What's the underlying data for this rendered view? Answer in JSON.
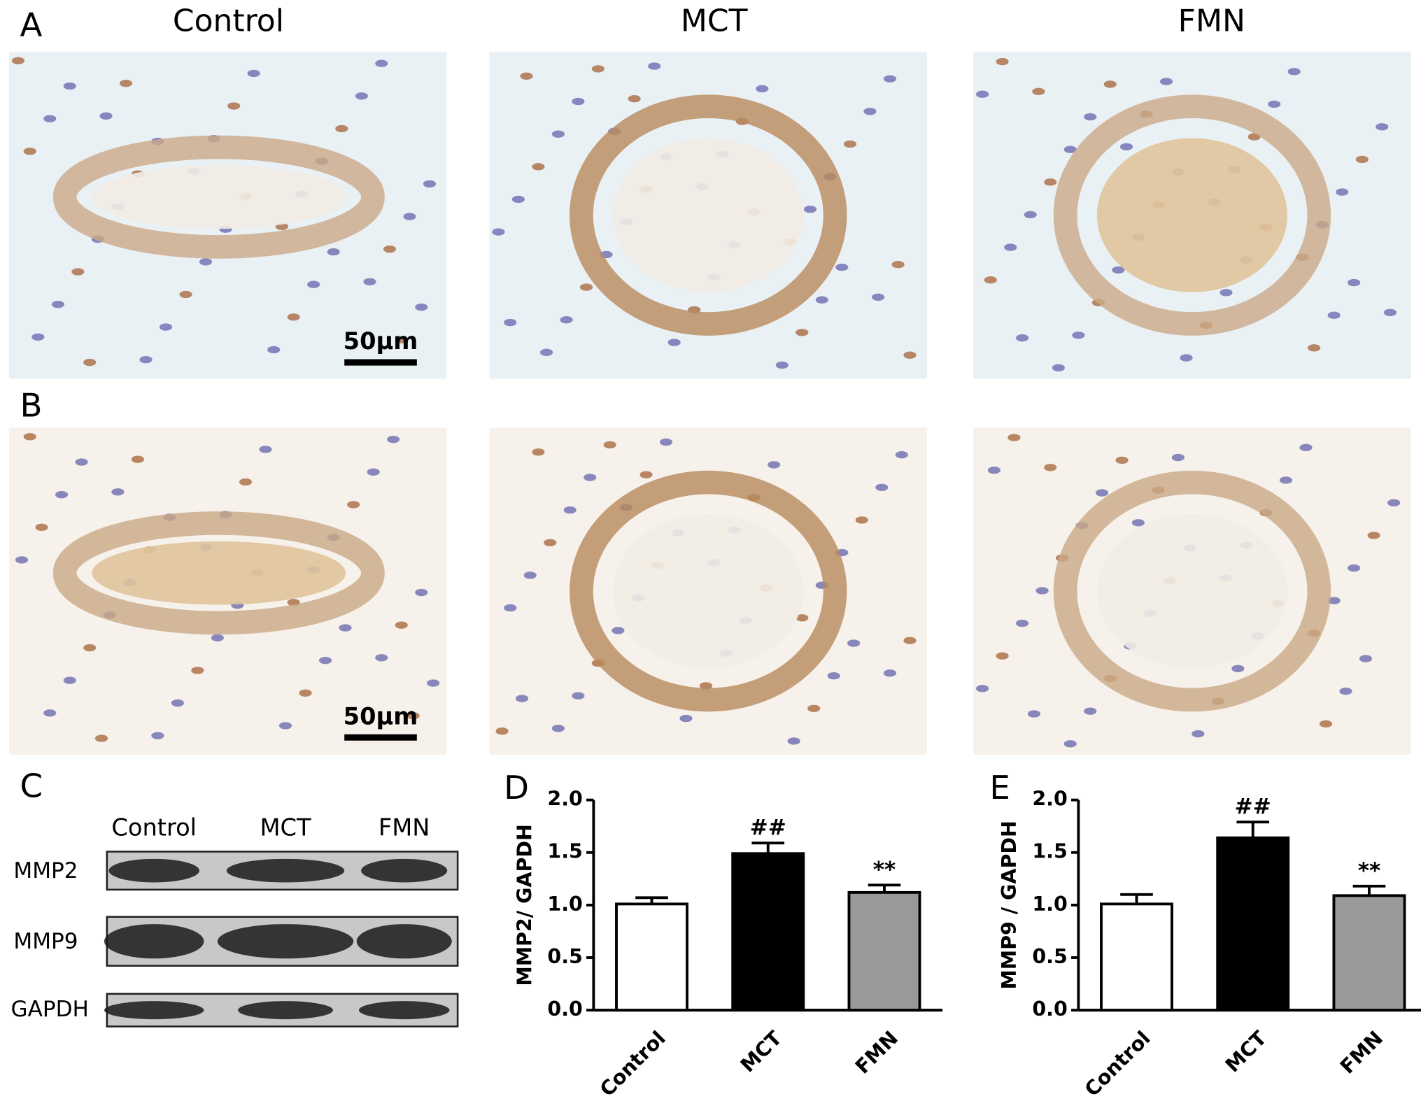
{
  "panel_labels": [
    "A",
    "B",
    "C",
    "D",
    "E"
  ],
  "columns": [
    "Control",
    "MCT",
    "FMN"
  ],
  "scale_bar": "50µm",
  "blot": {
    "lanes": [
      "Control",
      "MCT",
      "FMN"
    ],
    "rows": [
      "MMP2",
      "MMP9",
      "GAPDH"
    ]
  },
  "chart_data": [
    {
      "type": "bar",
      "ylabel": "MMP2/ GAPDH",
      "categories": [
        "Control",
        "MCT",
        "FMN"
      ],
      "values": [
        1.01,
        1.49,
        1.12
      ],
      "errors": [
        0.06,
        0.1,
        0.07
      ],
      "colors": [
        "#ffffff",
        "#000000",
        "#999999"
      ],
      "edgecolor": "#000000",
      "annotations": [
        {
          "category": "MCT",
          "text": "##"
        },
        {
          "category": "FMN",
          "text": "**"
        }
      ],
      "ylim": [
        0,
        2
      ],
      "yticks": [
        {
          "value": 0,
          "label": "0.0"
        },
        {
          "value": 0.5,
          "label": "0.5"
        },
        {
          "value": 1,
          "label": "1.0"
        },
        {
          "value": 1.5,
          "label": "1.5"
        },
        {
          "value": 2,
          "label": "2.0"
        }
      ]
    },
    {
      "type": "bar",
      "ylabel": "MMP9 / GAPDH",
      "categories": [
        "Control",
        "MCT",
        "FMN"
      ],
      "values": [
        1.01,
        1.64,
        1.09
      ],
      "errors": [
        0.09,
        0.15,
        0.09
      ],
      "colors": [
        "#ffffff",
        "#000000",
        "#999999"
      ],
      "edgecolor": "#000000",
      "annotations": [
        {
          "category": "MCT",
          "text": "##"
        },
        {
          "category": "FMN",
          "text": "**"
        }
      ],
      "ylim": [
        0,
        2
      ],
      "yticks": [
        {
          "value": 0,
          "label": "0.0"
        },
        {
          "value": 0.5,
          "label": "0.5"
        },
        {
          "value": 1,
          "label": "1.0"
        },
        {
          "value": 1.5,
          "label": "1.5"
        },
        {
          "value": 2,
          "label": "2.0"
        }
      ]
    }
  ]
}
